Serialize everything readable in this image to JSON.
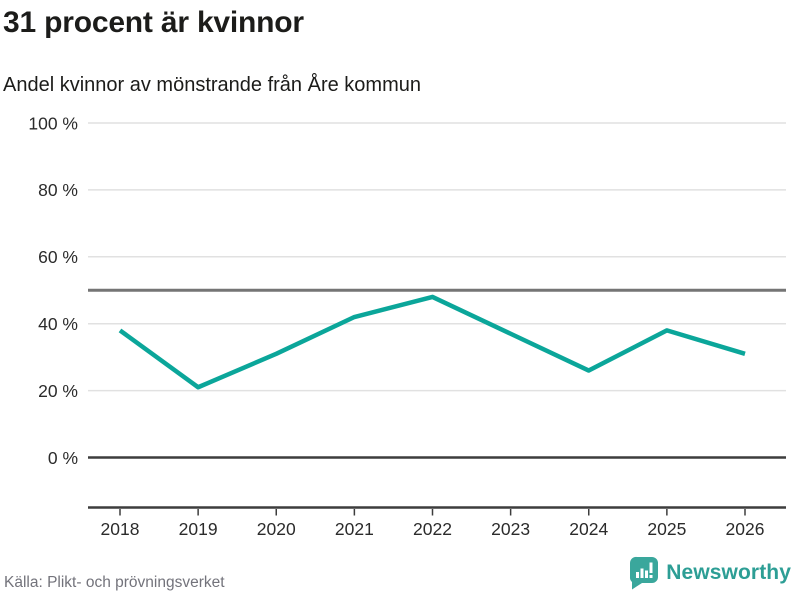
{
  "header": {
    "title": "31 procent är kvinnor",
    "subtitle": "Andel kvinnor av mönstrande från Åre kommun"
  },
  "chart_data": {
    "type": "line",
    "x": [
      2018,
      2019,
      2020,
      2021,
      2022,
      2023,
      2024,
      2025,
      2026
    ],
    "series": [
      {
        "name": "Andel kvinnor av mönstrande från Åre kommun",
        "values": [
          38,
          21,
          31,
          42,
          48,
          37,
          26,
          38,
          31
        ]
      }
    ],
    "unit": "%",
    "title": "31 procent är kvinnor",
    "subtitle": "Andel kvinnor av mönstrande från Åre kommun",
    "xlabel": "",
    "ylabel": "",
    "ylim": [
      0,
      100
    ],
    "yticks": [
      0,
      20,
      40,
      60,
      80,
      100
    ],
    "ytick_labels": [
      "0 %",
      "20 %",
      "40 %",
      "60 %",
      "80 %",
      "100 %"
    ],
    "xtick_labels": [
      "2018",
      "2019",
      "2020",
      "2021",
      "2022",
      "2023",
      "2024",
      "2025",
      "2026"
    ],
    "reference_line_y": 50,
    "grid": true,
    "legend": "none",
    "colors": {
      "line": "#0ba69a",
      "grid": "#e1e1e1",
      "reference": "#757575",
      "axis": "#3d3d3d",
      "tick_text": "#2b2b2b"
    }
  },
  "footer": {
    "source": "Källa: Plikt- och prövningsverket",
    "brand": "Newsworthy",
    "brand_color": "#2d9e95",
    "logo_color": "#3aa79c"
  }
}
